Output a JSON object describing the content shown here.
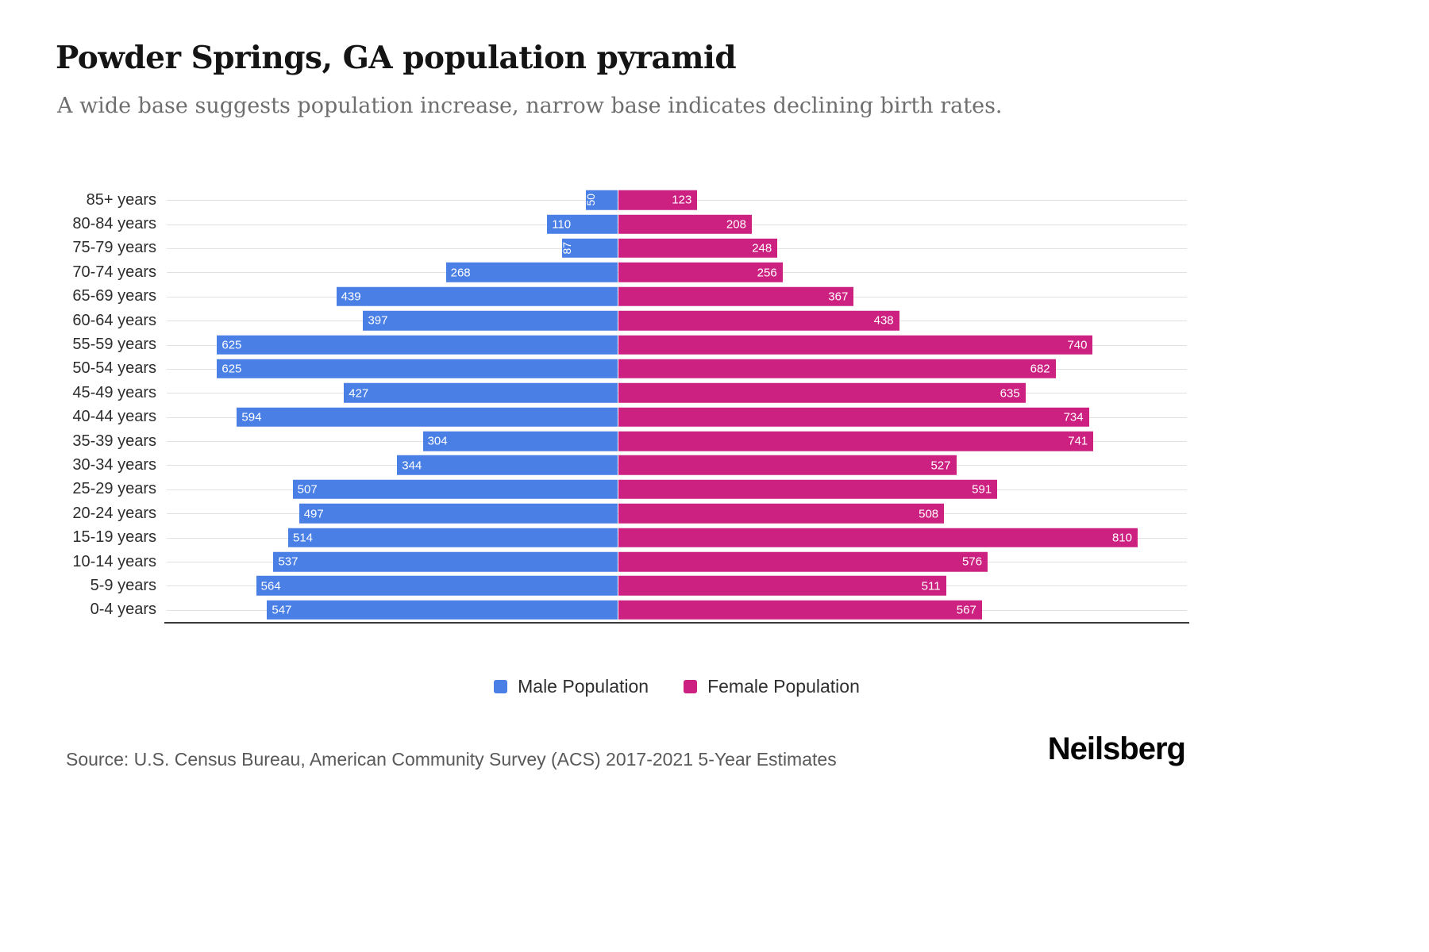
{
  "header": {
    "title": "Powder Springs, GA population pyramid",
    "subtitle": "A wide base suggests population increase, narrow base indicates declining birth rates."
  },
  "colors": {
    "male": "#4a7fe6",
    "female": "#cd2182",
    "gridline": "#e1e1e1",
    "axis": "#3a3a3a"
  },
  "chart_data": {
    "type": "bar",
    "variant": "population-pyramid",
    "orientation": "horizontal",
    "title": "Powder Springs, GA population pyramid",
    "subtitle": "A wide base suggests population increase, narrow base indicates declining birth rates.",
    "categories": [
      "85+ years",
      "80-84 years",
      "75-79 years",
      "70-74 years",
      "65-69 years",
      "60-64 years",
      "55-59 years",
      "50-54 years",
      "45-49 years",
      "40-44 years",
      "35-39 years",
      "30-34 years",
      "25-29 years",
      "20-24 years",
      "15-19 years",
      "10-14 years",
      "5-9 years",
      "0-4 years"
    ],
    "series": [
      {
        "name": "Male Population",
        "side": "left",
        "color": "#4a7fe6",
        "values": [
          50,
          110,
          87,
          268,
          439,
          397,
          625,
          625,
          427,
          594,
          304,
          344,
          507,
          497,
          514,
          537,
          564,
          547
        ]
      },
      {
        "name": "Female Population",
        "side": "right",
        "color": "#cd2182",
        "values": [
          123,
          208,
          248,
          256,
          367,
          438,
          740,
          682,
          635,
          734,
          741,
          527,
          591,
          508,
          810,
          576,
          511,
          567
        ]
      }
    ],
    "value_axis_max_each_side": 810,
    "bar_value_labels": true,
    "grid": true,
    "legend_position": "bottom"
  },
  "legend": {
    "male_label": "Male Population",
    "female_label": "Female Population"
  },
  "footer": {
    "source": "Source: U.S. Census Bureau, American Community Survey (ACS) 2017-2021 5-Year Estimates",
    "brand": "Neilsberg"
  }
}
